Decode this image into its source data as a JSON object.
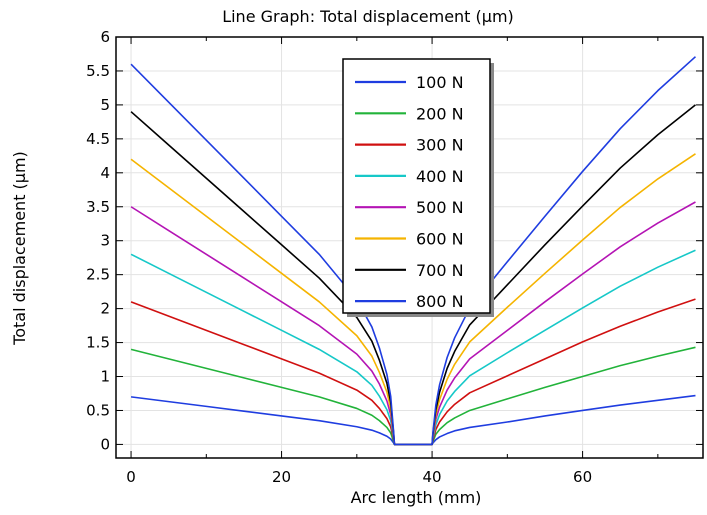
{
  "chart_data": {
    "type": "line",
    "title": "Line Graph: Total displacement (µm)",
    "xlabel": "Arc length (mm)",
    "ylabel": "Total displacement (µm)",
    "xlim": [
      -2,
      76
    ],
    "ylim": [
      -0.2,
      6
    ],
    "xticks": [
      0,
      20,
      40,
      60
    ],
    "yticks": [
      0,
      0.5,
      1,
      1.5,
      2,
      2.5,
      3,
      3.5,
      4,
      4.5,
      5,
      5.5,
      6
    ],
    "yticklabels": [
      "0",
      "0.5",
      "1",
      "1.5",
      "2",
      "2.5",
      "3",
      "3.5",
      "4",
      "4.5",
      "5",
      "5.5",
      "6"
    ],
    "grid": true,
    "legend_position": "top-center",
    "x": [
      0,
      5,
      10,
      15,
      20,
      25,
      30,
      32,
      33,
      34,
      34.5,
      34.9,
      35,
      36,
      37,
      38,
      39,
      40,
      40.1,
      40.5,
      41,
      42,
      43,
      45,
      50,
      55,
      60,
      65,
      70,
      75
    ],
    "series": [
      {
        "name": "100 N",
        "color": "#1f3de0",
        "values": [
          0.7,
          0.63,
          0.56,
          0.49,
          0.42,
          0.35,
          0.26,
          0.21,
          0.17,
          0.12,
          0.08,
          0.02,
          0,
          0,
          0,
          0,
          0,
          0,
          0.02,
          0.07,
          0.11,
          0.16,
          0.2,
          0.25,
          0.33,
          0.42,
          0.5,
          0.58,
          0.65,
          0.72
        ]
      },
      {
        "name": "200 N",
        "color": "#22b33a",
        "values": [
          1.4,
          1.26,
          1.12,
          0.98,
          0.84,
          0.7,
          0.53,
          0.43,
          0.35,
          0.25,
          0.17,
          0.04,
          0,
          0,
          0,
          0,
          0,
          0,
          0.04,
          0.15,
          0.22,
          0.32,
          0.39,
          0.5,
          0.67,
          0.84,
          1.0,
          1.16,
          1.3,
          1.43
        ]
      },
      {
        "name": "300 N",
        "color": "#d01010",
        "values": [
          2.1,
          1.89,
          1.68,
          1.47,
          1.26,
          1.05,
          0.8,
          0.65,
          0.53,
          0.38,
          0.26,
          0.07,
          0,
          0,
          0,
          0,
          0,
          0,
          0.06,
          0.22,
          0.33,
          0.48,
          0.59,
          0.76,
          1.01,
          1.26,
          1.51,
          1.74,
          1.95,
          2.14
        ]
      },
      {
        "name": "400 N",
        "color": "#16c8c8",
        "values": [
          2.8,
          2.52,
          2.24,
          1.96,
          1.68,
          1.4,
          1.07,
          0.87,
          0.71,
          0.51,
          0.35,
          0.09,
          0,
          0,
          0,
          0,
          0,
          0,
          0.08,
          0.29,
          0.44,
          0.64,
          0.78,
          1.01,
          1.35,
          1.68,
          2.01,
          2.33,
          2.61,
          2.86
        ]
      },
      {
        "name": "500 N",
        "color": "#b414b4",
        "values": [
          3.5,
          3.15,
          2.8,
          2.45,
          2.1,
          1.75,
          1.33,
          1.08,
          0.89,
          0.64,
          0.44,
          0.11,
          0,
          0,
          0,
          0,
          0,
          0,
          0.1,
          0.37,
          0.55,
          0.8,
          0.98,
          1.26,
          1.68,
          2.1,
          2.51,
          2.91,
          3.26,
          3.57
        ]
      },
      {
        "name": "600 N",
        "color": "#f5b400",
        "values": [
          4.2,
          3.78,
          3.36,
          2.94,
          2.52,
          2.1,
          1.6,
          1.3,
          1.06,
          0.77,
          0.53,
          0.13,
          0,
          0,
          0,
          0,
          0,
          0,
          0.12,
          0.44,
          0.66,
          0.96,
          1.18,
          1.51,
          2.02,
          2.52,
          3.01,
          3.49,
          3.91,
          4.28
        ]
      },
      {
        "name": "700 N",
        "color": "#000000",
        "values": [
          4.9,
          4.41,
          3.92,
          3.43,
          2.94,
          2.45,
          1.87,
          1.52,
          1.24,
          0.9,
          0.62,
          0.15,
          0,
          0,
          0,
          0,
          0,
          0,
          0.14,
          0.51,
          0.77,
          1.12,
          1.37,
          1.76,
          2.35,
          2.94,
          3.51,
          4.07,
          4.56,
          5.0
        ]
      },
      {
        "name": "800 N",
        "color": "#1f3de0",
        "values": [
          5.6,
          5.04,
          4.48,
          3.92,
          3.36,
          2.8,
          2.13,
          1.73,
          1.42,
          1.03,
          0.71,
          0.17,
          0,
          0,
          0,
          0,
          0,
          0,
          0.16,
          0.58,
          0.88,
          1.28,
          1.57,
          2.01,
          2.69,
          3.36,
          4.02,
          4.65,
          5.21,
          5.71
        ]
      }
    ]
  }
}
